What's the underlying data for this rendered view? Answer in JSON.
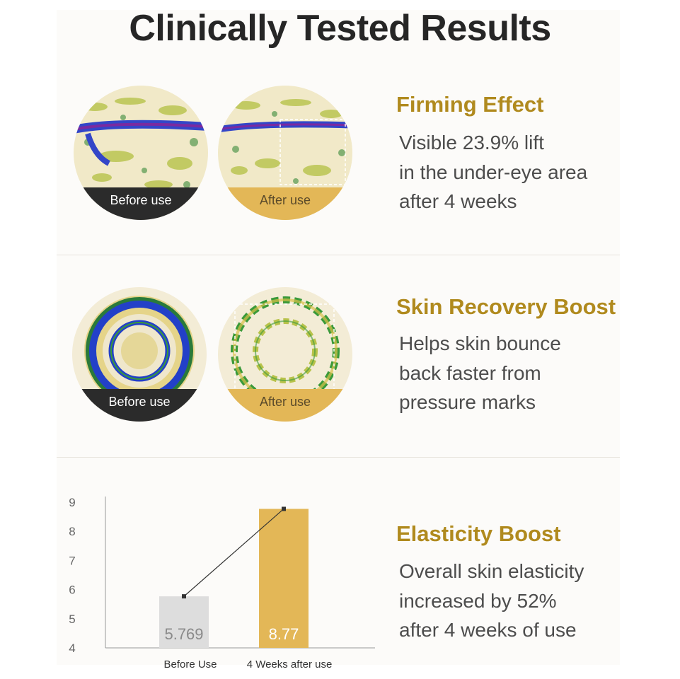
{
  "title": "Clinically Tested Results",
  "labels": {
    "before": "Before use",
    "after": "After use"
  },
  "sections": [
    {
      "heading": "Firming Effect",
      "lines": [
        "Visible 23.9% lift",
        "in the under-eye area",
        "after 4 weeks"
      ]
    },
    {
      "heading": "Skin Recovery Boost",
      "lines": [
        "Helps skin bounce",
        "back faster from",
        "pressure marks"
      ]
    },
    {
      "heading": "Elasticity Boost",
      "lines": [
        "Overall skin elasticity",
        "increased by 52%",
        "after 4 weeks of use"
      ]
    }
  ],
  "colors": {
    "heading": "#b08a1e",
    "before_bar": "#dddddd",
    "after_bar": "#e3b757",
    "dark_band": "#2b2b2b"
  },
  "chart_data": {
    "type": "bar",
    "categories": [
      "Before Use",
      "4 Weeks after use"
    ],
    "values": [
      5.769,
      8.77
    ],
    "value_labels": [
      "5.769",
      "8.77"
    ],
    "y_ticks": [
      4,
      5,
      6,
      7,
      8,
      9
    ],
    "ylim": [
      4,
      9
    ],
    "colors": [
      "#dddddd",
      "#e3b757"
    ],
    "trend_line": true,
    "grid": false,
    "title": "",
    "xlabel": "",
    "ylabel": ""
  }
}
